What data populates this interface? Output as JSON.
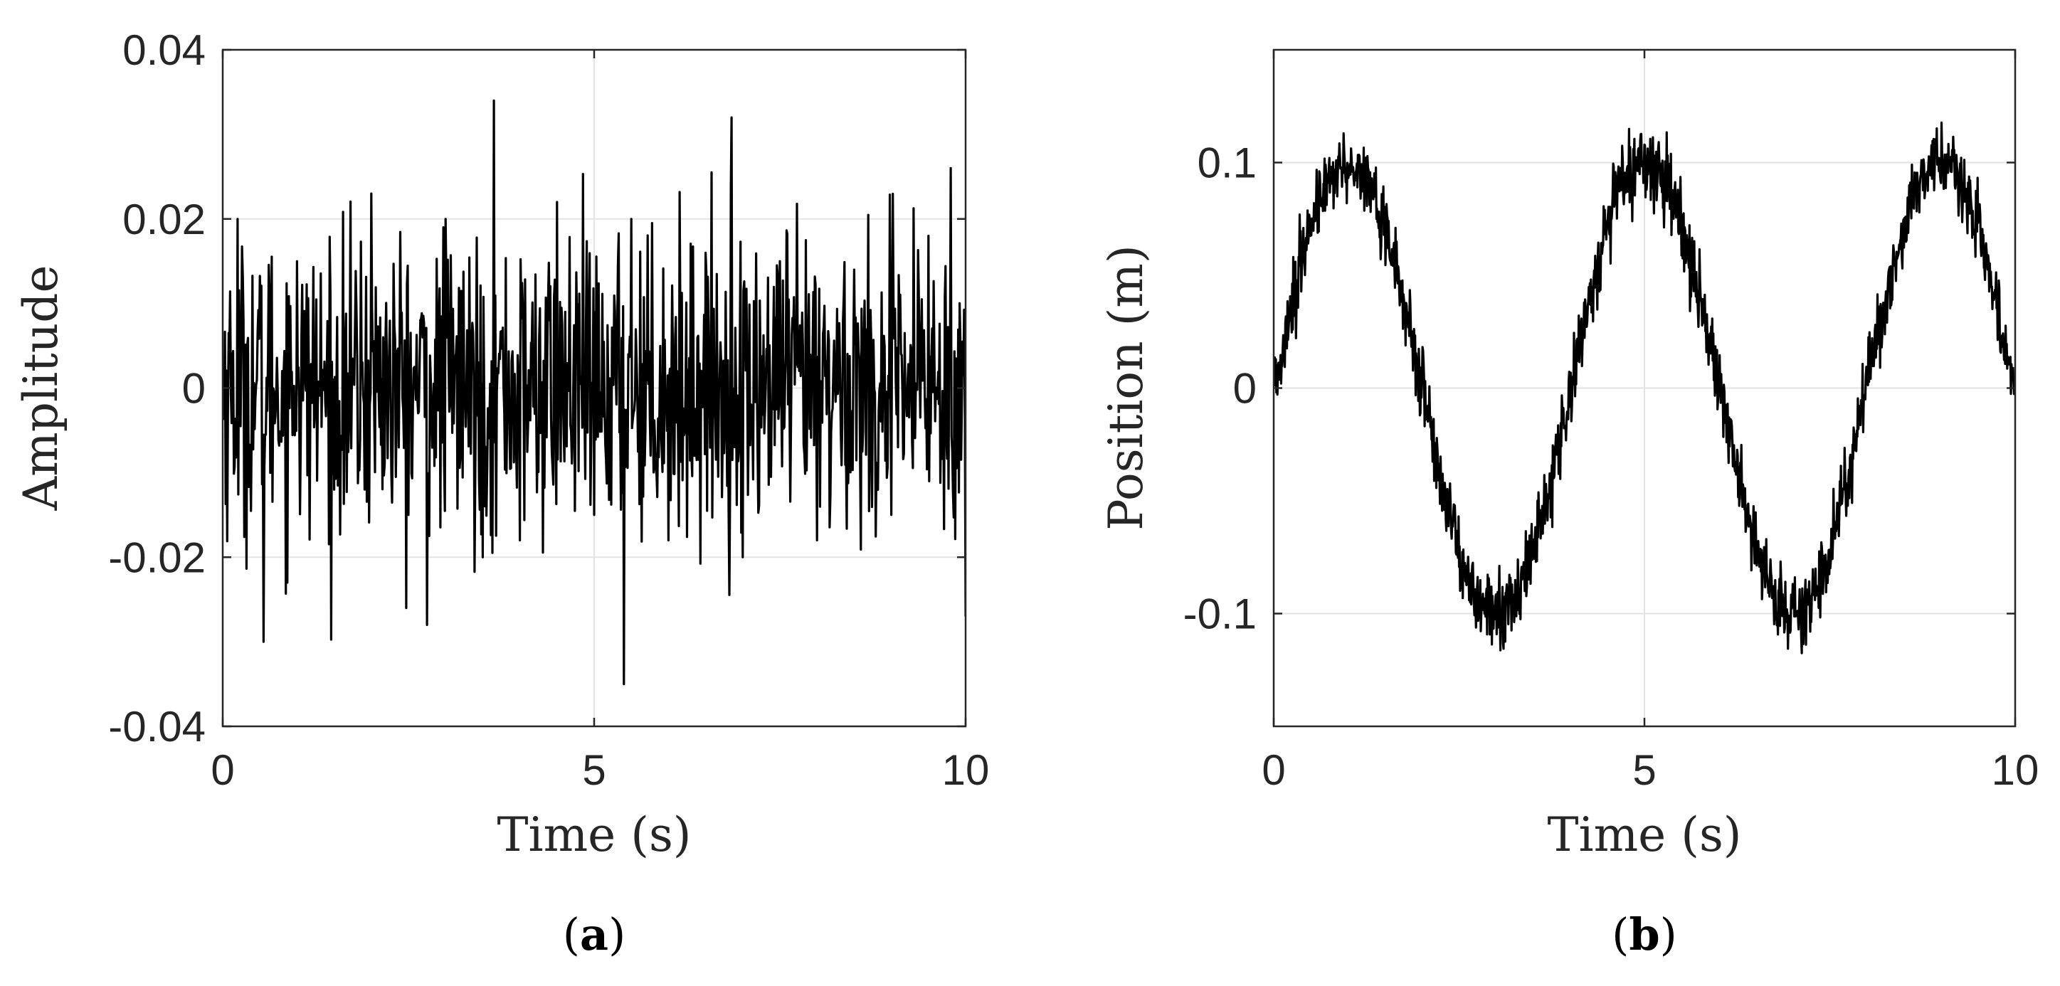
{
  "chart_data": [
    {
      "type": "line",
      "panel_label": "a",
      "xlabel": "Time (s)",
      "ylabel": "Amplitude",
      "xlim": [
        0,
        10
      ],
      "ylim": [
        -0.04,
        0.04
      ],
      "xticks": [
        0,
        5,
        10
      ],
      "xtick_labels": [
        "0",
        "5",
        "10"
      ],
      "yticks": [
        -0.04,
        -0.02,
        0,
        0.02,
        0.04
      ],
      "ytick_labels": [
        "-0.04",
        "-0.02",
        "0",
        "0.02",
        "0.04"
      ],
      "grid": true,
      "series": [
        {
          "color": "#000000",
          "description_of_shape": "zero-mean random noise, mostly within ±0.015",
          "x": [
            0,
            0.2,
            0.55,
            1.0,
            1.5,
            2.0,
            2.5,
            2.75,
            3.0,
            3.5,
            3.65,
            4.0,
            4.5,
            5.0,
            5.4,
            5.5,
            6.0,
            6.5,
            6.85,
            7.0,
            7.5,
            8.0,
            8.5,
            9.0,
            9.5,
            9.8,
            10.0
          ],
          "y": [
            0.0,
            0.02,
            -0.03,
            0.015,
            -0.012,
            0.023,
            -0.015,
            -0.028,
            0.02,
            -0.02,
            0.034,
            -0.018,
            0.022,
            -0.015,
            -0.035,
            0.02,
            -0.018,
            0.016,
            0.032,
            -0.02,
            0.015,
            -0.018,
            0.014,
            -0.015,
            0.018,
            0.026,
            -0.027
          ]
        }
      ]
    },
    {
      "type": "line",
      "panel_label": "b",
      "xlabel": "Time (s)",
      "ylabel": "Position (m)",
      "xlim": [
        0,
        10
      ],
      "ylim": [
        -0.15,
        0.15
      ],
      "xticks": [
        0,
        5,
        10
      ],
      "xtick_labels": [
        "0",
        "5",
        "10"
      ],
      "yticks": [
        -0.1,
        0,
        0.1
      ],
      "ytick_labels": [
        "-0.1",
        "0",
        "0.1"
      ],
      "grid": true,
      "series": [
        {
          "color": "#000000",
          "description_of_shape": "noisy sine wave, amplitude ≈0.1, period ≈4 s",
          "x": [
            0,
            0.5,
            1.0,
            1.5,
            2.0,
            2.5,
            3.0,
            3.5,
            4.0,
            4.5,
            5.0,
            5.5,
            6.0,
            6.5,
            7.0,
            7.5,
            8.0,
            8.5,
            9.0,
            9.5,
            10.0
          ],
          "y": [
            0.0,
            0.071,
            0.1,
            0.071,
            0.0,
            -0.071,
            -0.1,
            -0.071,
            0.0,
            0.071,
            0.1,
            0.071,
            0.0,
            -0.071,
            -0.1,
            -0.071,
            0.0,
            0.071,
            0.1,
            0.071,
            0.0
          ]
        }
      ]
    }
  ]
}
